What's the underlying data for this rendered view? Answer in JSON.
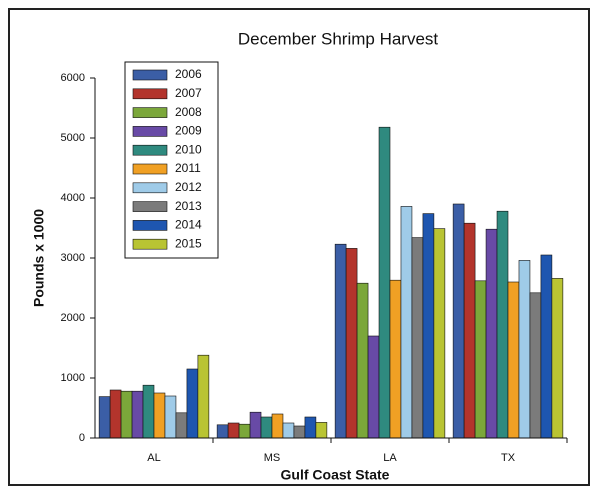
{
  "chart_data": {
    "type": "bar",
    "title": "December Shrimp Harvest",
    "x_label": "Gulf Coast State",
    "y_label": "Pounds x 1000",
    "categories": [
      "AL",
      "MS",
      "LA",
      "TX"
    ],
    "series": [
      {
        "name": "2006",
        "color": "#3b5ea6",
        "values": [
          690,
          220,
          3230,
          3900
        ]
      },
      {
        "name": "2007",
        "color": "#b3342c",
        "values": [
          800,
          250,
          3160,
          3580
        ]
      },
      {
        "name": "2008",
        "color": "#7ba73a",
        "values": [
          780,
          230,
          2580,
          2620
        ]
      },
      {
        "name": "2009",
        "color": "#684aa6",
        "values": [
          780,
          430,
          1700,
          3480
        ]
      },
      {
        "name": "2010",
        "color": "#2f8a7f",
        "values": [
          880,
          350,
          5180,
          3780
        ]
      },
      {
        "name": "2011",
        "color": "#f0a024",
        "values": [
          750,
          400,
          2630,
          2600
        ]
      },
      {
        "name": "2012",
        "color": "#9fcbe8",
        "values": [
          700,
          250,
          3860,
          2960
        ]
      },
      {
        "name": "2013",
        "color": "#7b7b7b",
        "values": [
          420,
          200,
          3340,
          2420
        ]
      },
      {
        "name": "2014",
        "color": "#1e56b0",
        "values": [
          1150,
          350,
          3740,
          3050
        ]
      },
      {
        "name": "2015",
        "color": "#b9c433",
        "values": [
          1380,
          260,
          3490,
          2660
        ]
      }
    ],
    "ylim": [
      0,
      6000
    ],
    "yticks": [
      0,
      1000,
      2000,
      3000,
      4000,
      5000,
      6000
    ]
  }
}
